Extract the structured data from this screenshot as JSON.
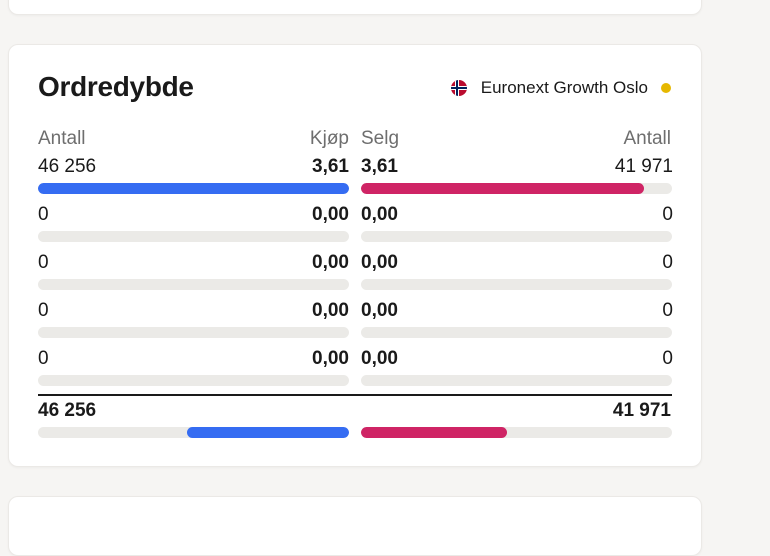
{
  "colors": {
    "buy": "#356cf2",
    "sell": "#cf2465",
    "status": "#e6b800",
    "track": "#ebeae7"
  },
  "widget": {
    "title": "Ordredybde",
    "exchange": {
      "flag_icon": "norway-flag-icon",
      "name": "Euronext Growth Oslo",
      "status_icon": "market-status-dot-icon"
    }
  },
  "headers": {
    "buy_qty": "Antall",
    "buy_price": "Kjøp",
    "sell_price": "Selg",
    "sell_qty": "Antall"
  },
  "rows": [
    {
      "buy_qty": "46 256",
      "buy_price": "3,61",
      "sell_price": "3,61",
      "sell_qty": "41 971",
      "buy_fill": 1.0,
      "sell_fill": 0.91
    },
    {
      "buy_qty": "0",
      "buy_price": "0,00",
      "sell_price": "0,00",
      "sell_qty": "0",
      "buy_fill": 0,
      "sell_fill": 0
    },
    {
      "buy_qty": "0",
      "buy_price": "0,00",
      "sell_price": "0,00",
      "sell_qty": "0",
      "buy_fill": 0,
      "sell_fill": 0
    },
    {
      "buy_qty": "0",
      "buy_price": "0,00",
      "sell_price": "0,00",
      "sell_qty": "0",
      "buy_fill": 0,
      "sell_fill": 0
    },
    {
      "buy_qty": "0",
      "buy_price": "0,00",
      "sell_price": "0,00",
      "sell_qty": "0",
      "buy_fill": 0,
      "sell_fill": 0
    }
  ],
  "totals": {
    "buy_qty": "46 256",
    "sell_qty": "41 971",
    "buy_fill": 0.52,
    "sell_fill": 0.47
  }
}
